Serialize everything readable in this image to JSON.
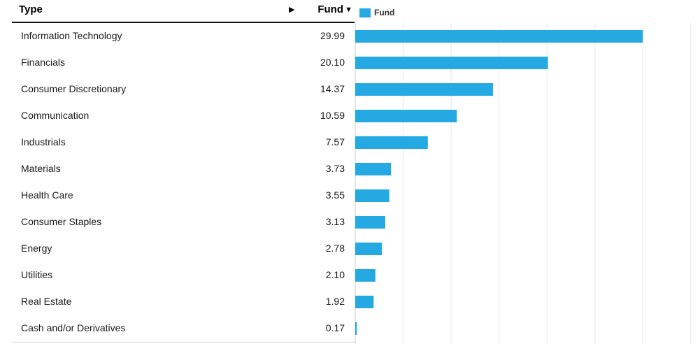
{
  "table": {
    "type_header": "Type",
    "fund_header": "Fund",
    "expand_icon": "triangle-right-icon",
    "sort_icon": "triangle-down-icon"
  },
  "legend": {
    "label": "Fund",
    "color": "#25a9e2"
  },
  "chart_data": {
    "type": "bar",
    "orientation": "horizontal",
    "categories": [
      "Information Technology",
      "Financials",
      "Consumer Discretionary",
      "Communication",
      "Industrials",
      "Materials",
      "Health Care",
      "Consumer Staples",
      "Energy",
      "Utilities",
      "Real Estate",
      "Cash and/or Derivatives"
    ],
    "series": [
      {
        "name": "Fund",
        "values": [
          29.99,
          20.1,
          14.37,
          10.59,
          7.57,
          3.73,
          3.55,
          3.13,
          2.78,
          2.1,
          1.92,
          0.17
        ],
        "labels": [
          "29.99",
          "20.10",
          "14.37",
          "10.59",
          "7.57",
          "3.73",
          "3.55",
          "3.13",
          "2.78",
          "2.10",
          "1.92",
          "0.17"
        ],
        "color": "#25a9e2"
      }
    ],
    "xlim": [
      0,
      35
    ],
    "grid": true,
    "legend_position": "top-left"
  }
}
